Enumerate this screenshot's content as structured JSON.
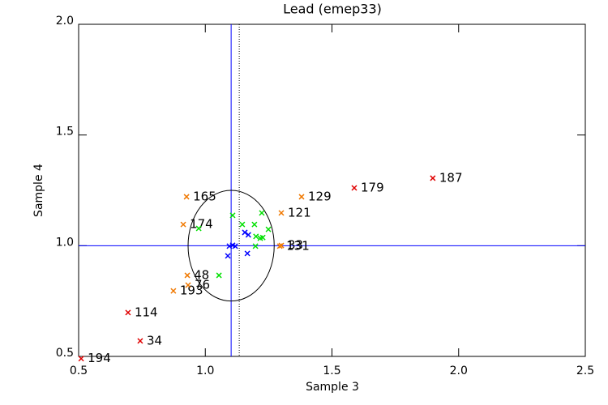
{
  "chart_data": {
    "type": "scatter",
    "title": "Lead (emep33)",
    "x_label": "Sample 3",
    "y_label": "Sample 4",
    "xlim": [
      0.5,
      2.5
    ],
    "ylim": [
      0.5,
      2.0
    ],
    "xticks": [
      0.5,
      {
        "value": 1.0,
        "label": "1.0"
      },
      1.5,
      {
        "value": 2.0,
        "label": "2.0"
      },
      2.5
    ],
    "yticks": [
      0.5,
      {
        "value": 1.0,
        "label": "1.0"
      },
      1.5,
      {
        "value": 2.0,
        "label": "2.0"
      }
    ],
    "ref_x": 1.102,
    "ref_y": 1.0,
    "dotted_x": 1.134,
    "ref_color": "#0000ff",
    "ellipse": {
      "cx": 1.102,
      "cy": 1.0,
      "rx": 0.17,
      "ry": 0.25
    },
    "series": [
      {
        "color": "#e00000",
        "x": [
          0.51,
          0.695,
          0.743,
          1.588,
          1.898
        ],
        "values": [
          0.49,
          0.698,
          0.57,
          1.261,
          1.305
        ],
        "labels": [
          "194",
          "114",
          "34",
          "179",
          "187"
        ]
      },
      {
        "color": "#f07800",
        "x": [
          0.926,
          1.38,
          1.3,
          0.913,
          1.294,
          1.3,
          0.929,
          0.874,
          0.932
        ],
        "values": [
          1.221,
          1.221,
          1.148,
          1.096,
          0.998,
          1.001,
          0.866,
          0.796,
          0.822
        ],
        "labels": [
          "165",
          "129",
          "121",
          "174",
          "131",
          "33",
          "48",
          "193",
          "76"
        ]
      },
      {
        "color": "#00e000",
        "x": [
          1.108,
          1.146,
          1.194,
          1.223,
          1.249,
          1.2,
          1.217,
          1.227,
          1.198,
          0.974,
          1.054
        ],
        "values": [
          1.137,
          1.096,
          1.096,
          1.148,
          1.074,
          1.042,
          1.034,
          1.037,
          0.998,
          1.078,
          0.866
        ]
      },
      {
        "color": "#0000ff",
        "x": [
          1.095,
          1.108,
          1.089,
          1.156,
          1.17,
          1.166,
          1.118
        ],
        "values": [
          0.998,
          1.002,
          0.954,
          1.06,
          1.049,
          0.965,
          0.998
        ]
      }
    ]
  }
}
